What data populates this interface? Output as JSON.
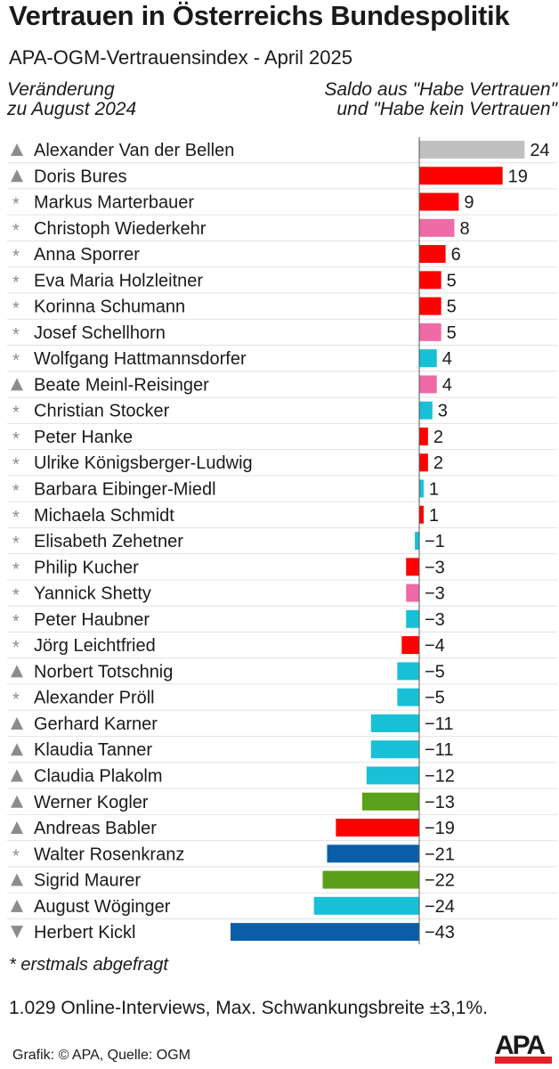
{
  "title": "Vertrauen in Österreichs Bundespolitik",
  "subtitle": "APA-OGM-Vertrauensindex - April 2025",
  "left_header": [
    "Veränderung",
    "zu August 2024"
  ],
  "right_header": [
    "Saldo aus \"Habe Vertrauen\"",
    "und \"Habe kein Vertrauen\""
  ],
  "footnote": "* erstmals abgefragt",
  "methodology": "1.029 Online-Interviews, Max. Schwankungsbreite ±3,1%.",
  "credit": "Grafik: © APA, Quelle: OGM",
  "logo": "APA",
  "colors": {
    "gray": "#c0c0c0",
    "red": "#ff0000",
    "pink": "#f06aa6",
    "cyan": "#18c0d8",
    "green": "#5aa01a",
    "blue": "#0a5ea8"
  },
  "chart_data": {
    "type": "bar",
    "orientation": "horizontal",
    "title": "Vertrauen in Österreichs Bundespolitik",
    "xlim": [
      -43,
      24
    ],
    "grid": false,
    "categories": [
      "Alexander Van der Bellen",
      "Doris Bures",
      "Markus Marterbauer",
      "Christoph Wiederkehr",
      "Anna Sporrer",
      "Eva Maria Holzleitner",
      "Korinna Schumann",
      "Josef Schellhorn",
      "Wolfgang Hattmannsdorfer",
      "Beate Meinl-Reisinger",
      "Christian Stocker",
      "Peter Hanke",
      "Ulrike Königsberger-Ludwig",
      "Barbara Eibinger-Miedl",
      "Michaela Schmidt",
      "Elisabeth Zehetner",
      "Philip Kucher",
      "Yannick Shetty",
      "Peter Haubner",
      "Jörg Leichtfried",
      "Norbert Totschnig",
      "Alexander Pröll",
      "Gerhard Karner",
      "Klaudia Tanner",
      "Claudia Plakolm",
      "Werner Kogler",
      "Andreas Babler",
      "Walter Rosenkranz",
      "Sigrid Maurer",
      "August Wöginger",
      "Herbert Kickl"
    ],
    "values": [
      24,
      19,
      9,
      8,
      6,
      5,
      5,
      5,
      4,
      4,
      3,
      2,
      2,
      1,
      1,
      -1,
      -3,
      -3,
      -3,
      -4,
      -5,
      -5,
      -11,
      -11,
      -12,
      -13,
      -19,
      -21,
      -22,
      -24,
      -43
    ],
    "value_labels": [
      "24",
      "19",
      "9",
      "8",
      "6",
      "5",
      "5",
      "5",
      "4",
      "4",
      "3",
      "2",
      "2",
      "1",
      "1",
      "−1",
      "−3",
      "−3",
      "−3",
      "−4",
      "−5",
      "−5",
      "−11",
      "−11",
      "−12",
      "−13",
      "−19",
      "−21",
      "−22",
      "−24",
      "−43"
    ],
    "change": [
      "up",
      "up",
      "new",
      "new",
      "new",
      "new",
      "new",
      "new",
      "new",
      "up",
      "new",
      "new",
      "new",
      "new",
      "new",
      "new",
      "new",
      "new",
      "new",
      "new",
      "up",
      "new",
      "up",
      "up",
      "up",
      "up",
      "up",
      "new",
      "up",
      "up",
      "down"
    ],
    "bar_colors": [
      "gray",
      "red",
      "red",
      "pink",
      "red",
      "red",
      "red",
      "pink",
      "cyan",
      "pink",
      "cyan",
      "red",
      "red",
      "cyan",
      "red",
      "cyan",
      "red",
      "pink",
      "cyan",
      "red",
      "cyan",
      "cyan",
      "cyan",
      "cyan",
      "cyan",
      "green",
      "red",
      "blue",
      "green",
      "cyan",
      "blue"
    ]
  }
}
